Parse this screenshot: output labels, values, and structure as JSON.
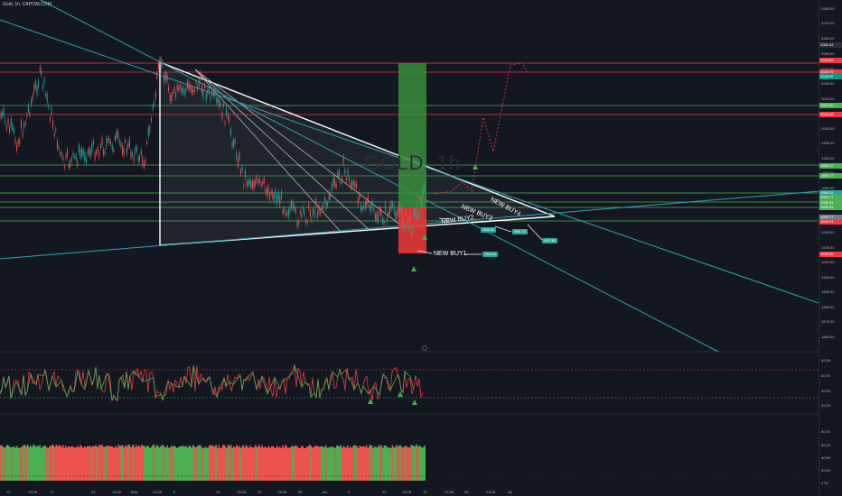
{
  "header": {
    "symbol": "Gold, 1h, CAPITALCOM"
  },
  "watermark": "GOLD, 1h",
  "price_scale": {
    "ticks": [
      "2080.00",
      "2070.00",
      "2060.00",
      "2050.00",
      "2040.00",
      "2030.00",
      "2020.00",
      "2010.00",
      "2000.00",
      "1990.00",
      "1980.00",
      "1970.00",
      "1960.00",
      "1950.00",
      "1940.00",
      "1930.00",
      "1920.00",
      "1910.00",
      "1900.00",
      "1890.00",
      "1880.00",
      "1870.00",
      "1860.00"
    ],
    "labels": [
      {
        "text": "2062.43",
        "color": "#2a2e39"
      },
      {
        "text": "2049.89",
        "color": "#f23645"
      },
      {
        "text": "2043.79",
        "color": "#f23645"
      },
      {
        "text": "2038.06",
        "color": "#089981"
      },
      {
        "text": "2020.00",
        "color": "#4caf50"
      },
      {
        "text": "2016.38",
        "color": "#f23645"
      },
      {
        "text": "1986.12",
        "color": "#4caf50"
      },
      {
        "text": "1980.77",
        "color": "#4caf50"
      },
      {
        "text": "1968.26",
        "color": "#26a69a"
      },
      {
        "text": "1964.77",
        "color": "#4caf50"
      },
      {
        "text": "1960.03",
        "color": "#4caf50"
      },
      {
        "text": "1956.04",
        "color": "#4caf50"
      },
      {
        "text": "1952.77",
        "color": "#787b86"
      },
      {
        "text": "1949.21",
        "color": "#f23645"
      },
      {
        "text": "1930.38",
        "color": "#f23645"
      }
    ],
    "osc_ticks": [
      "80.00",
      "60.00",
      "40.00",
      "20.00"
    ],
    "vol_ticks": [
      "80.00",
      "60.00",
      "40.00",
      "20.00",
      "0.00"
    ]
  },
  "x_axis": [
    "10",
    "13:28",
    "17",
    "24",
    "13:28",
    "May",
    "13:28",
    "8",
    "15",
    "13:28",
    "22",
    "13:28",
    "29",
    "Jun",
    "5",
    "12",
    "13:28",
    "19",
    "13:28",
    "26",
    "13:28",
    "Jul"
  ],
  "annotations": [
    {
      "label": "NEW BUY1",
      "price": "1931.94"
    },
    {
      "label": "NEW BUY2",
      "price": "1946.58"
    },
    {
      "label": "NEW BUY3",
      "price": "1941.78"
    },
    {
      "label": "NEW BUY4",
      "price": "1937.68"
    }
  ],
  "colors": {
    "bg": "#131722",
    "up": "#4caf50",
    "down": "#f23645",
    "accent": "#26a69a"
  }
}
